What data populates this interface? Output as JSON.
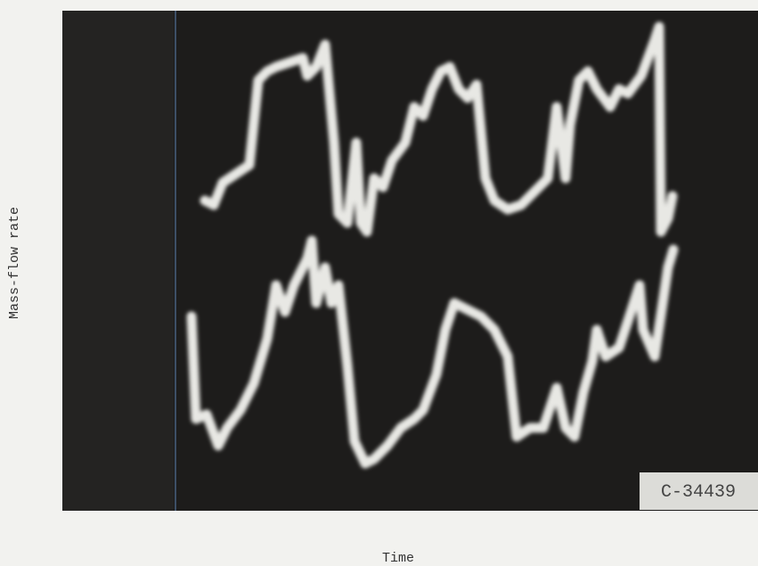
{
  "figure": {
    "y_label": "Mass-flow rate",
    "x_label": "Time",
    "photo_id": "C-34439"
  }
}
